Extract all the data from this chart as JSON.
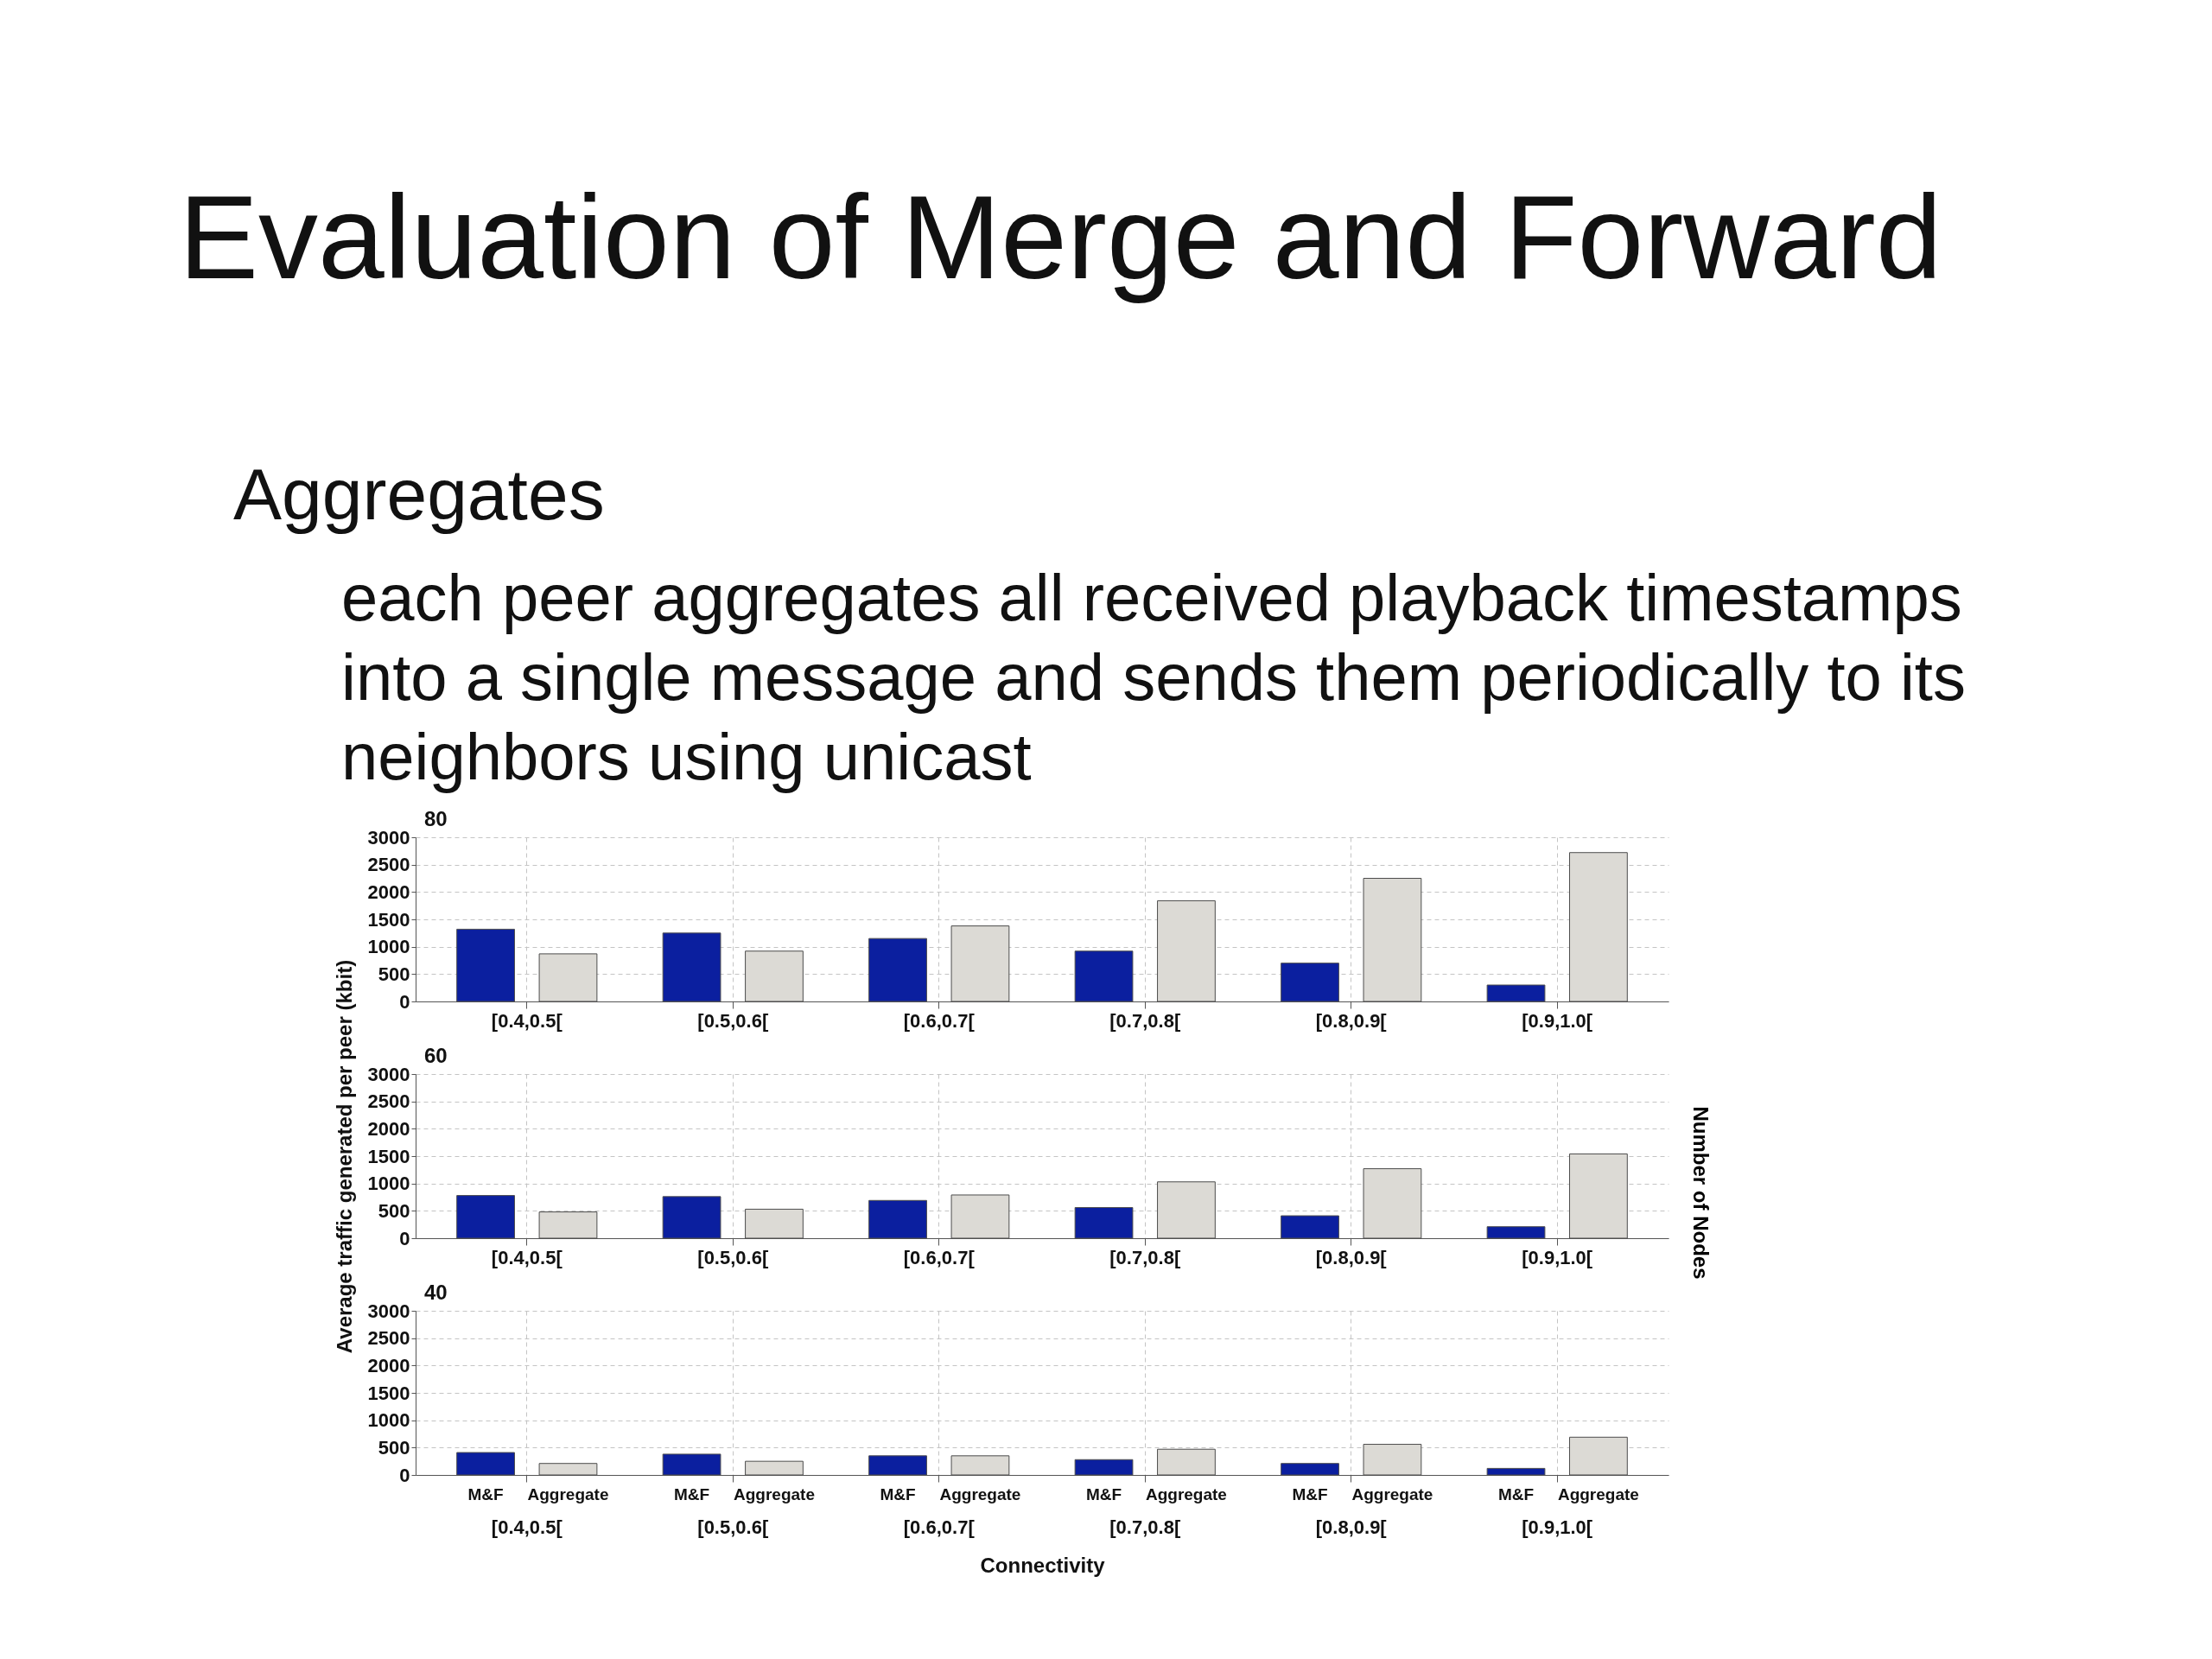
{
  "chart_data": [
    {
      "type": "other",
      "title": "Evaluation of Merge and Forward",
      "subtitle": "Aggregates",
      "annotations": [
        "each peer aggregates all received playback timestamps into a single message and sends them periodically to its neighbors using unicast"
      ]
    },
    {
      "type": "bar",
      "title": "80",
      "annotations": [
        "Number of Nodes"
      ],
      "categories": [
        "[0.4,0.5[",
        "[0.5,0.6[",
        "[0.6,0.7[",
        "[0.7,0.8[",
        "[0.8,0.9[",
        "[0.9,1.0["
      ],
      "series": [
        {
          "color": "#0b1f9f",
          "values": [
            1320,
            1250,
            1150,
            920,
            700,
            300
          ]
        },
        {
          "color": "#dcdad5",
          "values": [
            870,
            920,
            1380,
            1840,
            2250,
            2720
          ]
        }
      ],
      "ylim": [
        0,
        3000
      ],
      "yticks": [
        0,
        500,
        1000,
        1500,
        2000,
        2500,
        3000
      ],
      "grid": true
    },
    {
      "type": "bar",
      "title": "60",
      "ylabel": "Average traffic generated per peer (kbit)",
      "categories": [
        "[0.4,0.5[",
        "[0.5,0.6[",
        "[0.6,0.7[",
        "[0.7,0.8[",
        "[0.8,0.9[",
        "[0.9,1.0["
      ],
      "series": [
        {
          "color": "#0b1f9f",
          "values": [
            780,
            760,
            690,
            560,
            410,
            210
          ]
        },
        {
          "color": "#dcdad5",
          "values": [
            480,
            530,
            790,
            1030,
            1270,
            1540
          ]
        }
      ],
      "ylim": [
        0,
        3000
      ],
      "yticks": [
        0,
        500,
        1000,
        1500,
        2000,
        2500,
        3000
      ],
      "grid": true
    },
    {
      "type": "bar",
      "title": "40",
      "xlabel": "Connectivity",
      "categories": [
        "[0.4,0.5[",
        "[0.5,0.6[",
        "[0.6,0.7[",
        "[0.7,0.8[",
        "[0.8,0.9[",
        "[0.9,1.0["
      ],
      "series": [
        {
          "name": "M&F",
          "color": "#0b1f9f",
          "values": [
            410,
            380,
            350,
            280,
            210,
            120
          ]
        },
        {
          "name": "Aggregate",
          "color": "#dcdad5",
          "values": [
            210,
            250,
            350,
            470,
            560,
            690
          ]
        }
      ],
      "ylim": [
        0,
        3000
      ],
      "yticks": [
        0,
        500,
        1000,
        1500,
        2000,
        2500,
        3000
      ],
      "grid": true
    }
  ]
}
